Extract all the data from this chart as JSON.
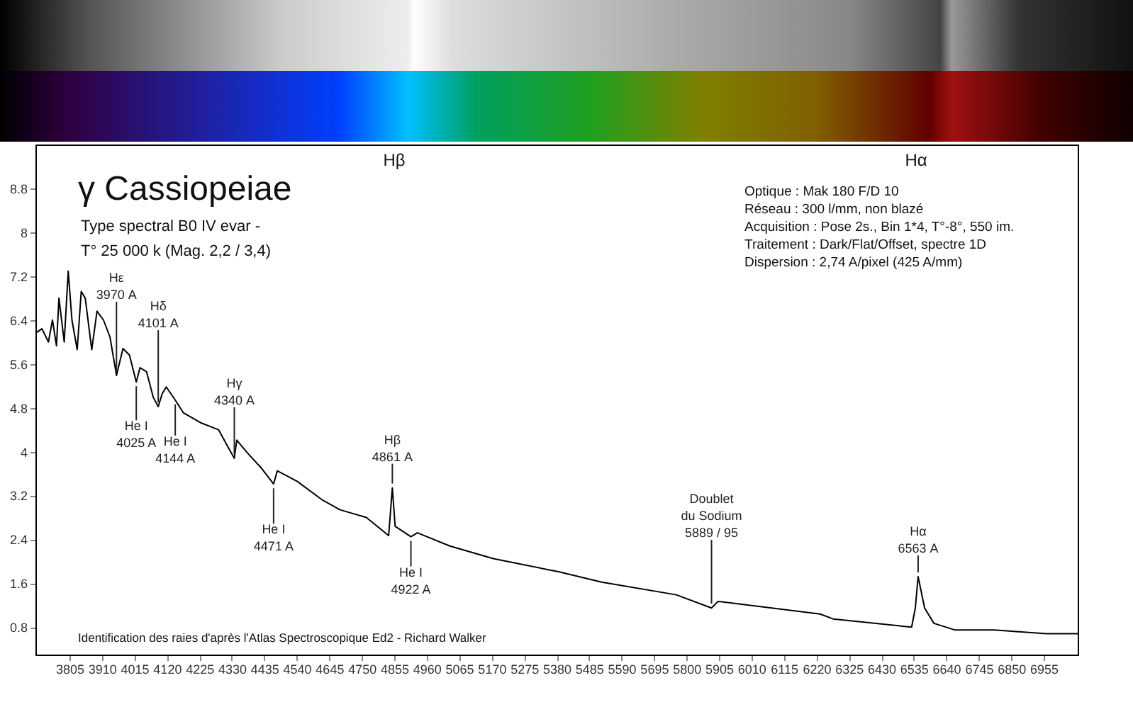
{
  "chart_data": {
    "type": "line",
    "title": "γ Cassiopeiae",
    "subtitle": "Type spectral B0 IV evar -\nT° 25 000 k (Mag. 2,2 / 3,4)",
    "x": [
      3695,
      3716,
      3737,
      3750,
      3763,
      3771,
      3788,
      3801,
      3813,
      3830,
      3843,
      3856,
      3877,
      3894,
      3915,
      3936,
      3957,
      3978,
      3999,
      4021,
      4033,
      4054,
      4076,
      4092,
      4105,
      4118,
      4147,
      4173,
      4232,
      4287,
      4321,
      4338,
      4346,
      4380,
      4427,
      4465,
      4477,
      4541,
      4625,
      4680,
      4765,
      4837,
      4849,
      4858,
      4909,
      4930,
      5035,
      5175,
      5386,
      5526,
      5767,
      5881,
      5902,
      6232,
      6274,
      6528,
      6540,
      6549,
      6570,
      6600,
      6667,
      6794,
      6963,
      7065
    ],
    "series": [
      {
        "color": "#000000",
        "values": [
          6.16,
          6.24,
          6.0,
          6.4,
          5.93,
          6.8,
          6.0,
          7.29,
          6.4,
          5.86,
          6.92,
          6.8,
          5.86,
          6.56,
          6.4,
          6.09,
          5.39,
          5.88,
          5.76,
          5.27,
          5.53,
          5.46,
          4.99,
          4.82,
          5.06,
          5.18,
          4.94,
          4.71,
          4.52,
          4.4,
          4.05,
          3.88,
          4.21,
          3.98,
          3.69,
          3.41,
          3.65,
          3.46,
          3.11,
          2.94,
          2.8,
          2.47,
          3.34,
          2.64,
          2.45,
          2.52,
          2.28,
          2.05,
          1.81,
          1.62,
          1.39,
          1.15,
          1.27,
          1.04,
          0.95,
          0.8,
          1.15,
          1.72,
          1.15,
          0.87,
          0.75,
          0.75,
          0.68,
          0.68
        ]
      }
    ],
    "xlim": [
      3695,
      7065
    ],
    "ylim": [
      0.3,
      9.6
    ],
    "xticks": [
      3805,
      3910,
      4015,
      4120,
      4225,
      4330,
      4435,
      4540,
      4645,
      4750,
      4855,
      4960,
      5065,
      5170,
      5275,
      5380,
      5485,
      5590,
      5695,
      5800,
      5905,
      6010,
      6115,
      6220,
      6325,
      6430,
      6535,
      6640,
      6745,
      6850,
      6955
    ],
    "yticks": [
      0.8,
      1.6,
      2.4,
      3.2,
      4,
      4.8,
      5.6,
      6.4,
      7.2,
      8,
      8.8
    ],
    "grid": false,
    "annotations": [
      "Optique : Mak 180 F/D 10\nRéseau : 300 l/mm, non blazé\nAcquisition : Pose 2s., Bin 1*4, T°-8°, 550 im.\nTraitement : Dark/Flat/Offset, spectre 1D\nDispersion : 2,74 A/pixel (425 A/mm)",
      "Identification des raies d'après l'Atlas Spectroscopique Ed2 - Richard Walker",
      "Hβ",
      "Hα",
      {
        "text": "Hε\n3970 A",
        "x": 3957,
        "y": 5.39
      },
      {
        "text": "Hδ\n4101 A",
        "x": 4092,
        "y": 4.82
      },
      {
        "text": "He I\n4025 A",
        "x": 4021,
        "y": 5.27
      },
      {
        "text": "He I\n4144 A",
        "x": 4147,
        "y": 4.94
      },
      {
        "text": "Hγ\n4340 A",
        "x": 4338,
        "y": 3.88
      },
      {
        "text": "He I\n4471 A",
        "x": 4465,
        "y": 3.41
      },
      {
        "text": "Hβ\n4861 A",
        "x": 4849,
        "y": 3.34
      },
      {
        "text": "He I\n4922 A",
        "x": 4909,
        "y": 2.45
      },
      {
        "text": "Doublet\ndu Sodium\n5889 / 95",
        "x": 5881,
        "y": 1.15
      },
      {
        "text": "Hα\n6563 A",
        "x": 6549,
        "y": 1.72
      }
    ]
  }
}
